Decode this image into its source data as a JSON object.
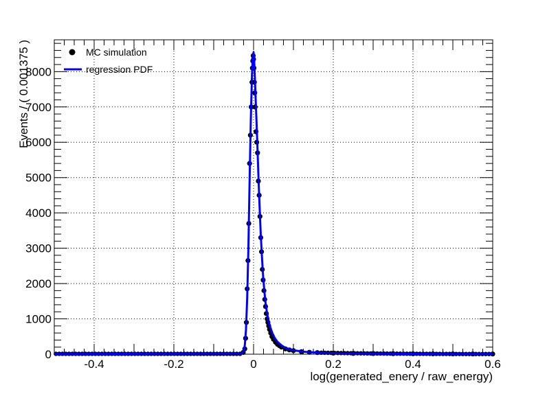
{
  "chart_data": {
    "type": "line",
    "xlabel": "log(generated_enery / raw_energy)",
    "ylabel": "Events / ( 0.001375 )",
    "xlim": [
      -0.5,
      0.6
    ],
    "ylim": [
      0,
      8900
    ],
    "xticks": [
      -0.4,
      -0.2,
      0,
      0.2,
      0.4,
      0.6
    ],
    "xtick_labels": [
      "-0.4",
      "-0.2",
      "0",
      "0.2",
      "0.4",
      "0.6"
    ],
    "yticks": [
      0,
      1000,
      2000,
      3000,
      4000,
      5000,
      6000,
      7000,
      8000
    ],
    "ytick_labels": [
      "0",
      "1000",
      "2000",
      "3000",
      "4000",
      "5000",
      "6000",
      "7000",
      "8000"
    ],
    "grid": true,
    "legend": {
      "position": "top-left",
      "entries": [
        {
          "label": "MC simulation",
          "style": "marker",
          "color": "#000000"
        },
        {
          "label": "regression PDF",
          "style": "line",
          "color": "#0000ff"
        }
      ]
    },
    "series": [
      {
        "name": "MC simulation",
        "kind": "points",
        "color": "#000000",
        "x": [
          -0.026,
          -0.022,
          -0.02,
          -0.018,
          -0.016,
          -0.014,
          -0.012,
          -0.01,
          -0.008,
          -0.006,
          -0.004,
          -0.003,
          -0.002,
          -0.001,
          0.0,
          0.001,
          0.002,
          0.003,
          0.004,
          0.006,
          0.008,
          0.01,
          0.012,
          0.014,
          0.016,
          0.018,
          0.02,
          0.022,
          0.024,
          0.026,
          0.028,
          0.03,
          0.032,
          0.034,
          0.036,
          0.038,
          0.04,
          0.043,
          0.046,
          0.05,
          0.055,
          0.06,
          0.065,
          0.07,
          0.08,
          0.09,
          0.1,
          0.12,
          0.14,
          0.16,
          0.2,
          0.25,
          0.3,
          0.35,
          0.4,
          0.45,
          0.5,
          0.55,
          0.6
        ],
        "y": [
          50,
          150,
          450,
          900,
          1850,
          2650,
          3700,
          5400,
          6200,
          7000,
          7700,
          8100,
          8300,
          8450,
          8350,
          8100,
          7700,
          7400,
          7000,
          6300,
          6000,
          5700,
          4900,
          4500,
          3900,
          3300,
          2900,
          2400,
          2100,
          1800,
          1550,
          1350,
          1150,
          1000,
          900,
          800,
          700,
          600,
          500,
          420,
          340,
          280,
          240,
          200,
          150,
          120,
          100,
          70,
          55,
          45,
          30,
          22,
          18,
          15,
          12,
          10,
          8,
          6,
          5
        ]
      },
      {
        "name": "regression PDF",
        "kind": "line",
        "color": "#0000ff",
        "x": [
          -0.03,
          -0.025,
          -0.022,
          -0.019,
          -0.016,
          -0.013,
          -0.01,
          -0.007,
          -0.004,
          -0.002,
          0.0,
          0.002,
          0.004,
          0.006,
          0.009,
          0.012,
          0.015,
          0.018,
          0.021,
          0.024,
          0.027,
          0.03,
          0.034,
          0.038,
          0.042,
          0.047,
          0.053,
          0.06,
          0.07,
          0.08,
          0.1,
          0.13,
          0.17,
          0.22,
          0.3,
          0.4,
          0.5,
          0.6
        ],
        "y": [
          20,
          80,
          250,
          700,
          1600,
          3000,
          4900,
          6600,
          7900,
          8400,
          8550,
          8200,
          7600,
          7000,
          6100,
          5100,
          4200,
          3400,
          2750,
          2200,
          1800,
          1450,
          1150,
          920,
          760,
          600,
          460,
          350,
          250,
          180,
          110,
          65,
          40,
          25,
          15,
          10,
          7,
          5
        ]
      }
    ]
  }
}
